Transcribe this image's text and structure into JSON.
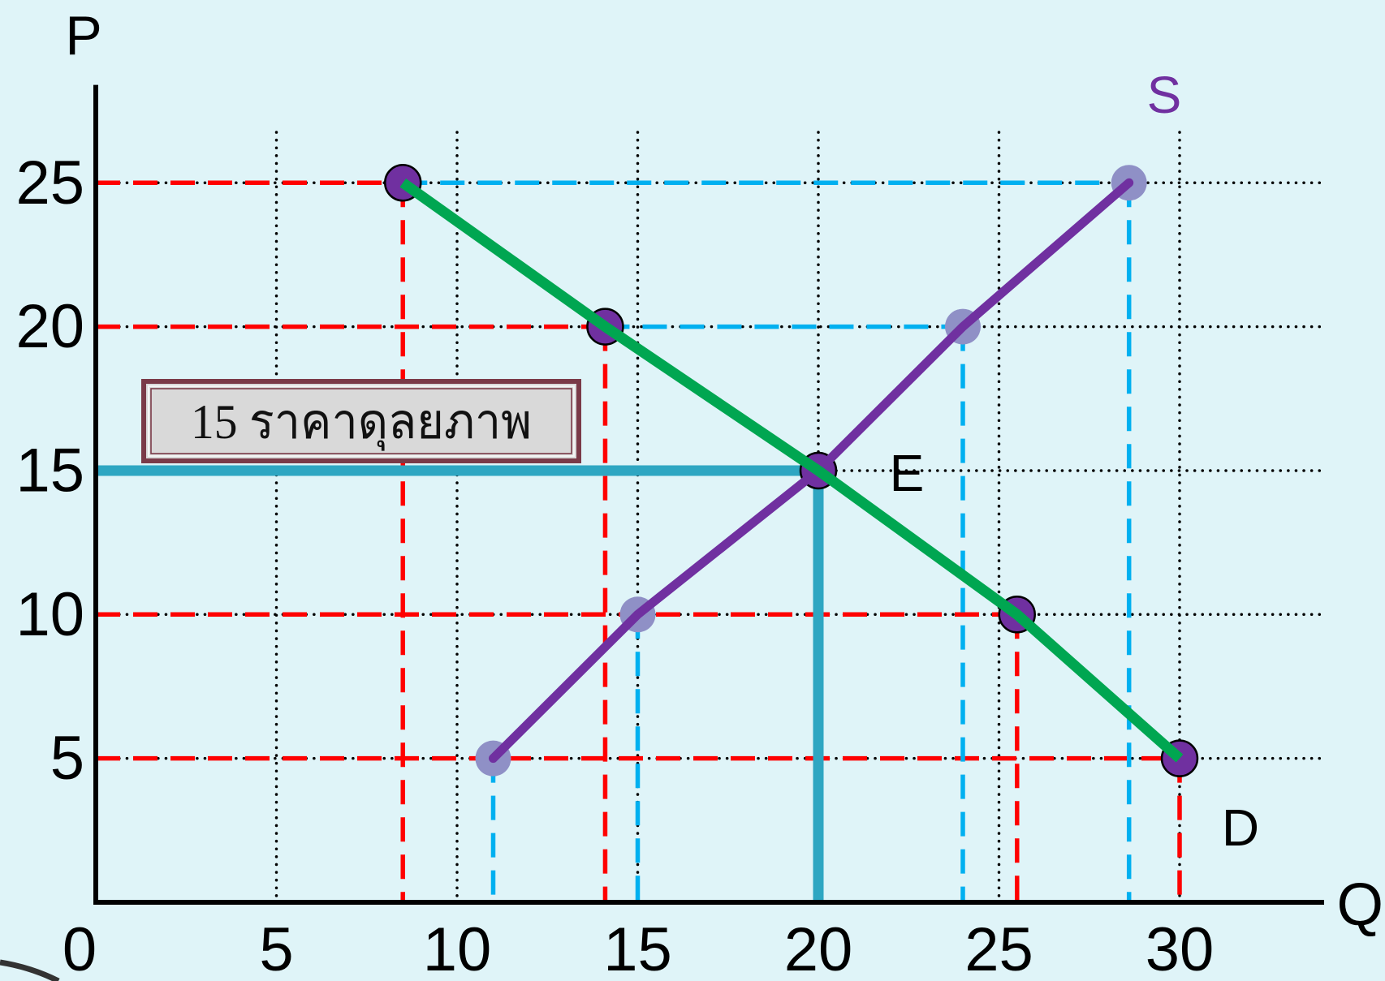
{
  "chart_data": {
    "type": "line",
    "xlabel": "Q",
    "ylabel": "P",
    "x_ticks": [
      0,
      5,
      10,
      15,
      20,
      25,
      30
    ],
    "y_ticks": [
      5,
      10,
      15,
      20,
      25
    ],
    "xlim": [
      0,
      34
    ],
    "ylim": [
      0,
      28.4
    ],
    "grid": true,
    "series": [
      {
        "name": "D",
        "color": "#00a651",
        "points": [
          [
            8.5,
            25
          ],
          [
            14.1,
            20
          ],
          [
            20,
            15
          ],
          [
            25.5,
            10
          ],
          [
            30,
            5
          ]
        ]
      },
      {
        "name": "S",
        "color": "#7030a0",
        "points": [
          [
            11,
            5
          ],
          [
            15,
            10
          ],
          [
            20,
            15
          ],
          [
            24,
            20
          ],
          [
            28.6,
            25
          ]
        ]
      }
    ],
    "equilibrium": {
      "label": "E",
      "quantity": 20,
      "price": 15,
      "color": "#2ea6c2"
    },
    "annotation": "15 ราคาดุลยภาพ"
  }
}
